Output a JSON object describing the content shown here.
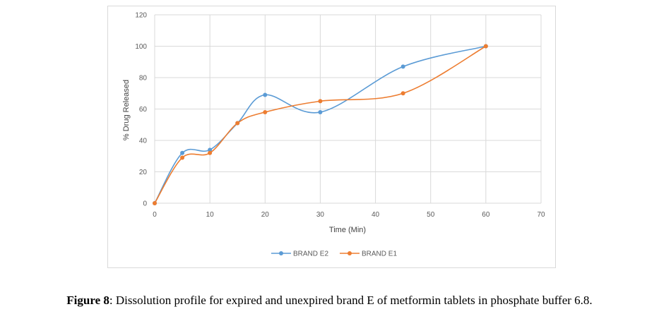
{
  "chart_data": {
    "type": "line",
    "xlabel": "Time (Min)",
    "ylabel": "% Drug Released",
    "xlim": [
      0,
      70
    ],
    "ylim": [
      0,
      120
    ],
    "xticks": [
      0,
      10,
      20,
      30,
      40,
      50,
      60,
      70
    ],
    "yticks": [
      0,
      20,
      40,
      60,
      80,
      100,
      120
    ],
    "grid": "vertical and horizontal",
    "smooth": true,
    "legend_position": "bottom",
    "series": [
      {
        "name": "BRAND E2",
        "color": "#5B9BD5",
        "x": [
          0,
          5,
          10,
          15,
          20,
          30,
          45,
          60
        ],
        "y": [
          0,
          32,
          34,
          51,
          69,
          58,
          87,
          100
        ]
      },
      {
        "name": "BRAND E1",
        "color": "#ED7D31",
        "x": [
          0,
          5,
          10,
          15,
          20,
          30,
          45,
          60
        ],
        "y": [
          0,
          29,
          32,
          51,
          58,
          65,
          70,
          100
        ]
      }
    ]
  },
  "caption": {
    "label": "Figure 8",
    "text": ": Dissolution profile for expired and unexpired brand E of metformin tablets in phosphate buffer 6.8."
  }
}
